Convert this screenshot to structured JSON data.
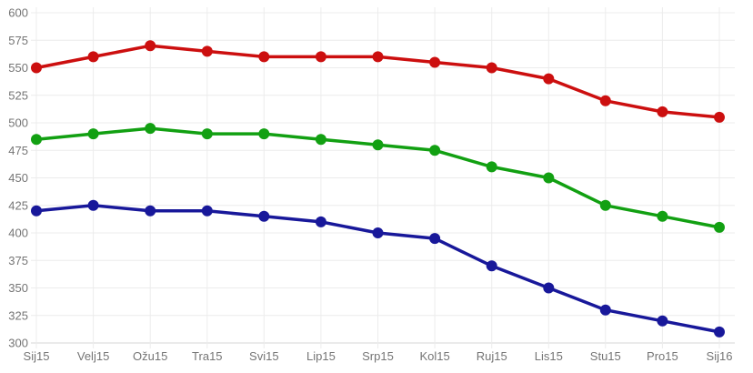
{
  "chart_data": {
    "type": "line",
    "title": "",
    "xlabel": "",
    "ylabel": "",
    "categories": [
      "Sij15",
      "Velj15",
      "Ožu15",
      "Tra15",
      "Svi15",
      "Lip15",
      "Srp15",
      "Kol15",
      "Ruj15",
      "Lis15",
      "Stu15",
      "Pro15",
      "Sij16"
    ],
    "series": [
      {
        "name": "red-series",
        "color": "#cc0f0f",
        "values": [
          550,
          560,
          570,
          565,
          560,
          560,
          560,
          555,
          550,
          540,
          520,
          510,
          505
        ]
      },
      {
        "name": "green-series",
        "color": "#12a012",
        "values": [
          485,
          490,
          495,
          490,
          490,
          485,
          480,
          475,
          460,
          450,
          425,
          415,
          405
        ]
      },
      {
        "name": "blue-series",
        "color": "#18189a",
        "values": [
          420,
          425,
          420,
          420,
          415,
          410,
          400,
          395,
          370,
          350,
          330,
          320,
          310
        ]
      }
    ],
    "ylim": [
      300,
      600
    ],
    "ytick_step": 25,
    "grid": true,
    "legend": false,
    "markers": true
  },
  "colors": {
    "grid": "#ececec",
    "axis_line": "#d6d6d6",
    "tick": "#d9d9d9",
    "label": "#757575",
    "background": "#ffffff"
  }
}
